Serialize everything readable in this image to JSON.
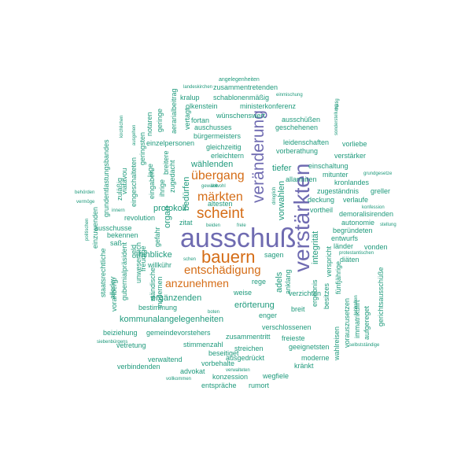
{
  "colors": {
    "purple": "#6f6bb1",
    "orange": "#d56d17",
    "teal": "#1f9a7c",
    "background": "#ffffff"
  },
  "words": [
    {
      "text": "ausschuß",
      "color": "purple"
    },
    {
      "text": "verstärkten",
      "color": "purple"
    },
    {
      "text": "veränderung",
      "color": "purple"
    },
    {
      "text": "bauern",
      "color": "orange"
    },
    {
      "text": "scheint",
      "color": "orange"
    },
    {
      "text": "märkten",
      "color": "orange"
    },
    {
      "text": "übergang",
      "color": "orange"
    },
    {
      "text": "entschädigung",
      "color": "orange"
    },
    {
      "text": "anzunehmen",
      "color": "orange"
    },
    {
      "text": "angelegenheiten",
      "color": "teal"
    },
    {
      "text": "zusammentretenden",
      "color": "teal"
    },
    {
      "text": "landeskirchen",
      "color": "teal"
    },
    {
      "text": "einmischung",
      "color": "teal"
    },
    {
      "text": "kralup",
      "color": "teal"
    },
    {
      "text": "schablonenmäßig",
      "color": "teal"
    },
    {
      "text": "olkenstein",
      "color": "teal"
    },
    {
      "text": "ministerkonferenz",
      "color": "teal"
    },
    {
      "text": "wünschenswert",
      "color": "teal"
    },
    {
      "text": "fortan",
      "color": "teal"
    },
    {
      "text": "ausschüßen",
      "color": "teal"
    },
    {
      "text": "auschusses",
      "color": "teal"
    },
    {
      "text": "geschehenen",
      "color": "teal"
    },
    {
      "text": "bürgermeisters",
      "color": "teal"
    },
    {
      "text": "einzelpersonen",
      "color": "teal"
    },
    {
      "text": "leidenschaften",
      "color": "teal"
    },
    {
      "text": "vorliebe",
      "color": "teal"
    },
    {
      "text": "gleichzeitig",
      "color": "teal"
    },
    {
      "text": "vorberathung",
      "color": "teal"
    },
    {
      "text": "erleichtern",
      "color": "teal"
    },
    {
      "text": "verstärker",
      "color": "teal"
    },
    {
      "text": "wählenden",
      "color": "teal"
    },
    {
      "text": "tiefer",
      "color": "teal"
    },
    {
      "text": "einschaltung",
      "color": "teal"
    },
    {
      "text": "mitunter",
      "color": "teal"
    },
    {
      "text": "grundgesetze",
      "color": "teal"
    },
    {
      "text": "allarmiren",
      "color": "teal"
    },
    {
      "text": "kronlandes",
      "color": "teal"
    },
    {
      "text": "bedürfen",
      "color": "teal"
    },
    {
      "text": "zugeständnis",
      "color": "teal"
    },
    {
      "text": "greller",
      "color": "teal"
    },
    {
      "text": "deckung",
      "color": "teal"
    },
    {
      "text": "verlaufe",
      "color": "teal"
    },
    {
      "text": "vorwahlen",
      "color": "teal"
    },
    {
      "text": "konfession",
      "color": "teal"
    },
    {
      "text": "protokoll",
      "color": "teal"
    },
    {
      "text": "vortheil",
      "color": "teal"
    },
    {
      "text": "demoralisirenden",
      "color": "teal"
    },
    {
      "text": "revolution",
      "color": "teal"
    },
    {
      "text": "altesten",
      "color": "teal"
    },
    {
      "text": "autonomie",
      "color": "teal"
    },
    {
      "text": "stellung",
      "color": "teal"
    },
    {
      "text": "zitat",
      "color": "teal"
    },
    {
      "text": "begründeten",
      "color": "teal"
    },
    {
      "text": "bekennen",
      "color": "teal"
    },
    {
      "text": "entwurfs",
      "color": "teal"
    },
    {
      "text": "ausschusse",
      "color": "teal"
    },
    {
      "text": "organ",
      "color": "teal"
    },
    {
      "text": "länder",
      "color": "teal"
    },
    {
      "text": "vonden",
      "color": "teal"
    },
    {
      "text": "hinblicke",
      "color": "teal"
    },
    {
      "text": "sagen",
      "color": "teal"
    },
    {
      "text": "diäten",
      "color": "teal"
    },
    {
      "text": "integrität",
      "color": "teal"
    },
    {
      "text": "ergänzenden",
      "color": "teal"
    },
    {
      "text": "rege",
      "color": "teal"
    },
    {
      "text": "weise",
      "color": "teal"
    },
    {
      "text": "erörterung",
      "color": "teal"
    },
    {
      "text": "kommunalangelegenheiten",
      "color": "teal"
    },
    {
      "text": "enger",
      "color": "teal"
    },
    {
      "text": "breit",
      "color": "teal"
    },
    {
      "text": "verschlossenen",
      "color": "teal"
    },
    {
      "text": "bestimmung",
      "color": "teal"
    },
    {
      "text": "beiziehung",
      "color": "teal"
    },
    {
      "text": "gemeindevorstehers",
      "color": "teal"
    },
    {
      "text": "zusammentritt",
      "color": "teal"
    },
    {
      "text": "freieste",
      "color": "teal"
    },
    {
      "text": "vetretung",
      "color": "teal"
    },
    {
      "text": "stimmenzahl",
      "color": "teal"
    },
    {
      "text": "streichen",
      "color": "teal"
    },
    {
      "text": "geeignetsten",
      "color": "teal"
    },
    {
      "text": "beseitiget",
      "color": "teal"
    },
    {
      "text": "verwaltend",
      "color": "teal"
    },
    {
      "text": "ausgedrückt",
      "color": "teal"
    },
    {
      "text": "moderne",
      "color": "teal"
    },
    {
      "text": "verbindenden",
      "color": "teal"
    },
    {
      "text": "vorbehalte",
      "color": "teal"
    },
    {
      "text": "kränkt",
      "color": "teal"
    },
    {
      "text": "advokat",
      "color": "teal"
    },
    {
      "text": "konzession",
      "color": "teal"
    },
    {
      "text": "wegfiele",
      "color": "teal"
    },
    {
      "text": "vollkommen",
      "color": "teal"
    },
    {
      "text": "verwalteten",
      "color": "teal"
    },
    {
      "text": "entspräche",
      "color": "teal"
    },
    {
      "text": "rumort",
      "color": "teal"
    },
    {
      "text": "siebenbürgens",
      "color": "teal"
    },
    {
      "text": "selbstständige",
      "color": "teal"
    },
    {
      "text": "verzichten",
      "color": "teal"
    },
    {
      "text": "behörden",
      "color": "teal"
    },
    {
      "text": "vermöge",
      "color": "teal"
    },
    {
      "text": "gewählt",
      "color": "teal"
    },
    {
      "text": "innern",
      "color": "teal"
    },
    {
      "text": "beiden",
      "color": "teal"
    },
    {
      "text": "frele",
      "color": "teal"
    },
    {
      "text": "schen",
      "color": "teal"
    },
    {
      "text": "boten",
      "color": "teal"
    },
    {
      "text": "sowohl",
      "color": "teal"
    },
    {
      "text": "willkühr",
      "color": "teal"
    },
    {
      "text": "saß",
      "color": "teal"
    },
    {
      "text": "protestantischen",
      "color": "teal"
    },
    {
      "text": "staatsrechtliche",
      "color": "teal"
    },
    {
      "text": "grundentlastungsbandes",
      "color": "teal"
    },
    {
      "text": "einzuwenden",
      "color": "teal"
    },
    {
      "text": "zuläßig",
      "color": "teal"
    },
    {
      "text": "vorarlberg",
      "color": "teal"
    },
    {
      "text": "gubernialpräsident",
      "color": "teal"
    },
    {
      "text": "viatavou",
      "color": "teal"
    },
    {
      "text": "eingeschalteten",
      "color": "teal"
    },
    {
      "text": "geringsten",
      "color": "teal"
    },
    {
      "text": "eingaben",
      "color": "teal"
    },
    {
      "text": "notaren",
      "color": "teal"
    },
    {
      "text": "lage",
      "color": "teal"
    },
    {
      "text": "geringe",
      "color": "teal"
    },
    {
      "text": "aerarialbeitrag",
      "color": "teal"
    },
    {
      "text": "vertagt",
      "color": "teal"
    },
    {
      "text": "breitere",
      "color": "teal"
    },
    {
      "text": "zugedacht",
      "color": "teal"
    },
    {
      "text": "ihrige",
      "color": "teal"
    },
    {
      "text": "gefahr",
      "color": "teal"
    },
    {
      "text": "unwesentlich",
      "color": "teal"
    },
    {
      "text": "freudige",
      "color": "teal"
    },
    {
      "text": "ständische",
      "color": "teal"
    },
    {
      "text": "modernen",
      "color": "teal"
    },
    {
      "text": "geld",
      "color": "teal"
    },
    {
      "text": "allerley",
      "color": "teal"
    },
    {
      "text": "politischen",
      "color": "teal"
    },
    {
      "text": "ausgehen",
      "color": "teal"
    },
    {
      "text": "kirchlichen",
      "color": "teal"
    },
    {
      "text": "adels",
      "color": "teal"
    },
    {
      "text": "anklang",
      "color": "teal"
    },
    {
      "text": "ergebnis",
      "color": "teal"
    },
    {
      "text": "besitzes",
      "color": "teal"
    },
    {
      "text": "verspricht",
      "color": "teal"
    },
    {
      "text": "fünfjährige",
      "color": "teal"
    },
    {
      "text": "wahlreisen",
      "color": "teal"
    },
    {
      "text": "vorauszusetzen",
      "color": "teal"
    },
    {
      "text": "immatrikulirt",
      "color": "teal"
    },
    {
      "text": "aufgereget",
      "color": "teal"
    },
    {
      "text": "gerichtsausschüße",
      "color": "teal"
    },
    {
      "text": "sonderstellung",
      "color": "teal"
    },
    {
      "text": "dringlich",
      "color": "teal"
    },
    {
      "text": "lebhaften",
      "color": "teal"
    },
    {
      "text": "thätig",
      "color": "teal"
    }
  ]
}
